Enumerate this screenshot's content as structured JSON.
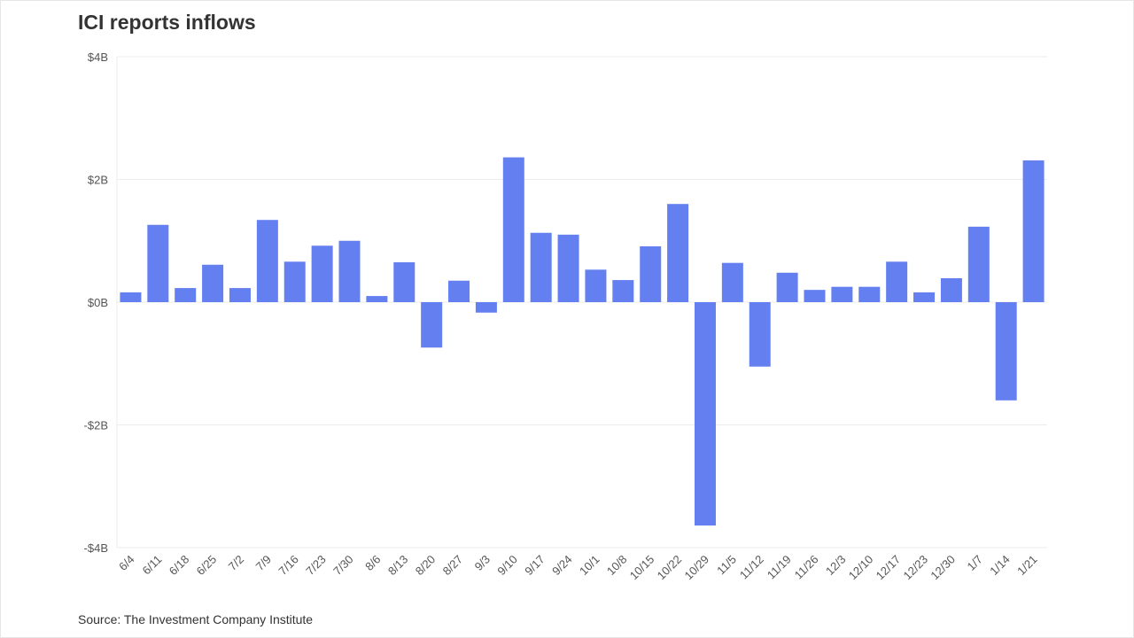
{
  "chart_data": {
    "type": "bar",
    "title": "ICI reports inflows",
    "source": "Source: The Investment Company Institute",
    "xlabel": "",
    "ylabel": "",
    "ylim": [
      -4,
      4
    ],
    "yticks": [
      4,
      2,
      0,
      -2,
      -4
    ],
    "ytick_labels": [
      "$4B",
      "$2B",
      "$0B",
      "-$2B",
      "-$4B"
    ],
    "grid": true,
    "bar_color": "#6480f0",
    "categories": [
      "6/4",
      "6/11",
      "6/18",
      "6/25",
      "7/2",
      "7/9",
      "7/16",
      "7/23",
      "7/30",
      "8/6",
      "8/13",
      "8/20",
      "8/27",
      "9/3",
      "9/10",
      "9/17",
      "9/24",
      "10/1",
      "10/8",
      "10/15",
      "10/22",
      "10/29",
      "11/5",
      "11/12",
      "11/19",
      "11/26",
      "12/3",
      "12/10",
      "12/17",
      "12/23",
      "12/30",
      "1/7",
      "1/14",
      "1/21"
    ],
    "values": [
      0.16,
      1.26,
      0.23,
      0.61,
      0.23,
      1.34,
      0.66,
      0.92,
      1.0,
      0.1,
      0.65,
      -0.74,
      0.35,
      -0.17,
      2.36,
      1.13,
      1.1,
      0.53,
      0.36,
      0.91,
      1.6,
      -3.64,
      0.64,
      -1.05,
      0.48,
      0.2,
      0.25,
      0.25,
      0.66,
      0.16,
      0.39,
      1.23,
      -1.6,
      2.31
    ]
  }
}
